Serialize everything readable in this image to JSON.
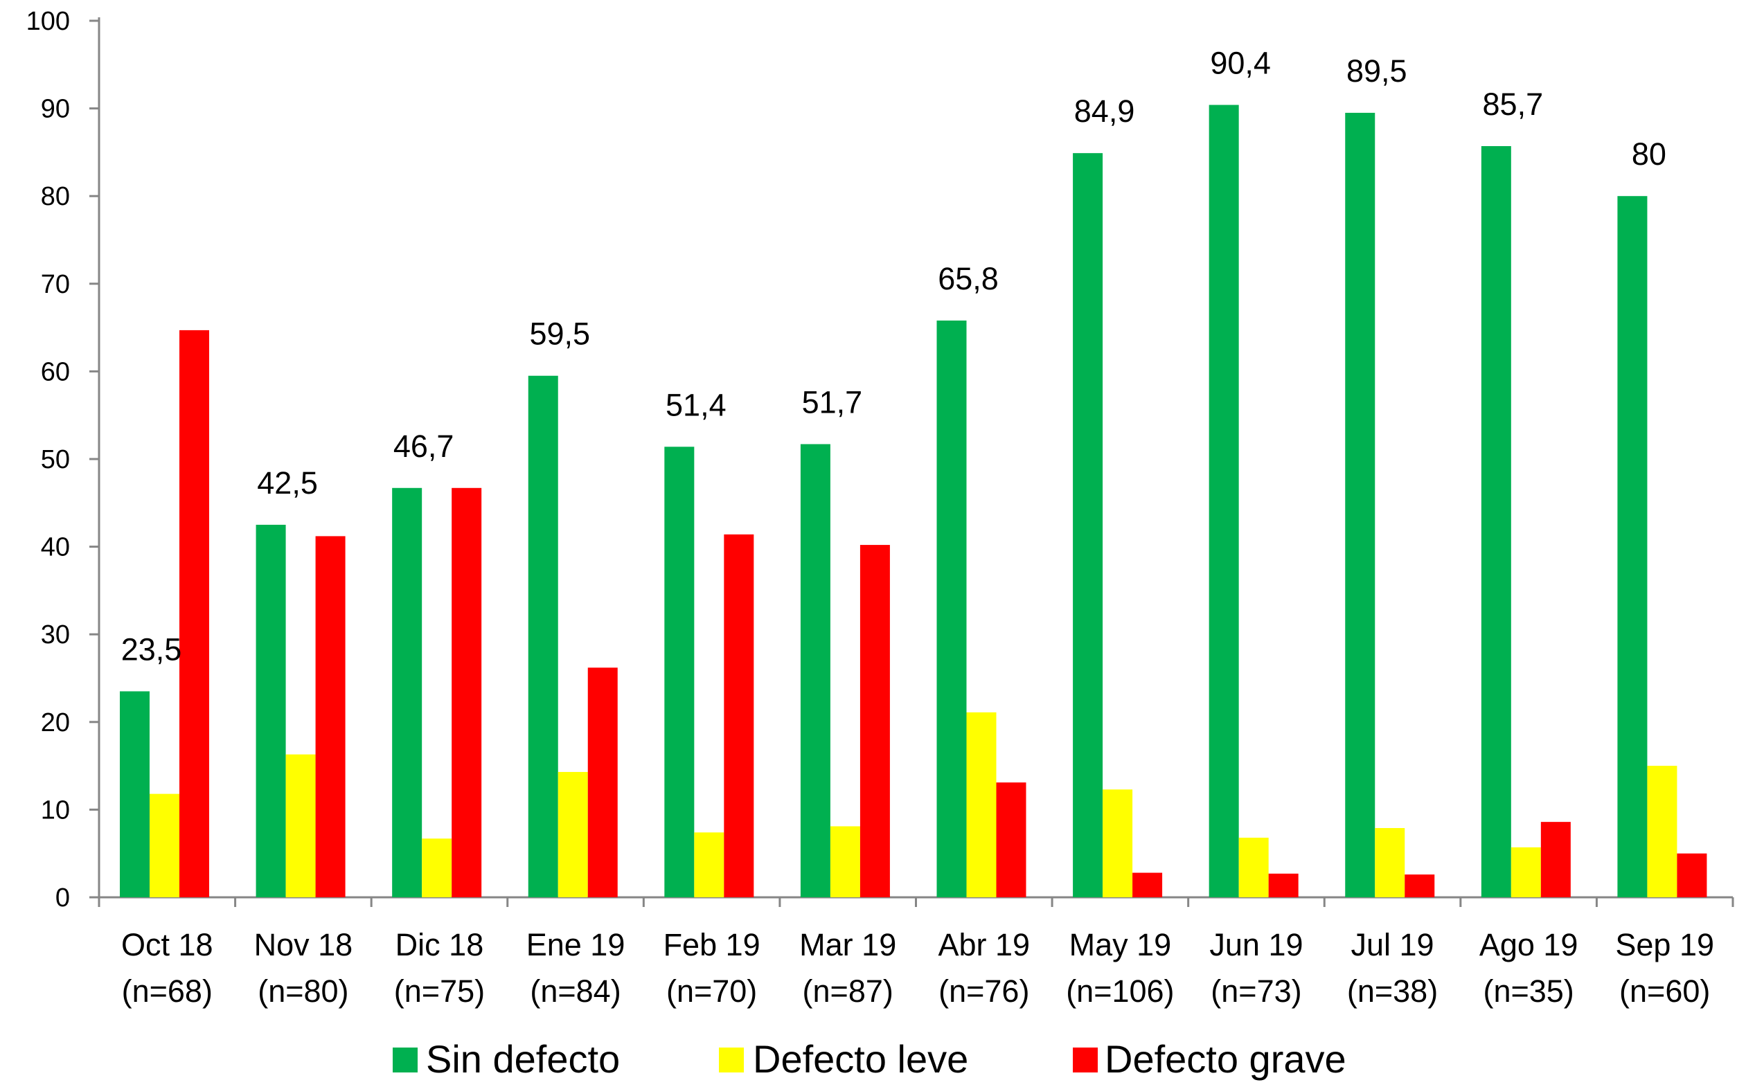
{
  "chart_data": {
    "type": "bar",
    "categories": [
      "Oct 18",
      "Nov 18",
      "Dic 18",
      "Ene 19",
      "Feb 19",
      "Mar 19",
      "Abr 19",
      "May 19",
      "Jun 19",
      "Jul 19",
      "Ago 19",
      "Sep 19"
    ],
    "category_n": [
      "(n=68)",
      "(n=80)",
      "(n=75)",
      "(n=84)",
      "(n=70)",
      "(n=87)",
      "(n=76)",
      "(n=106)",
      "(n=73)",
      "(n=38)",
      "(n=35)",
      "(n=60)"
    ],
    "series": [
      {
        "name": "Sin defecto",
        "color": "#00B050",
        "values": [
          23.5,
          42.5,
          46.7,
          59.5,
          51.4,
          51.7,
          65.8,
          84.9,
          90.4,
          89.5,
          85.7,
          80
        ]
      },
      {
        "name": "Defecto leve",
        "color": "#FFFF00",
        "values": [
          11.8,
          16.3,
          6.7,
          14.3,
          7.4,
          8.1,
          21.1,
          12.3,
          6.8,
          7.9,
          5.7,
          15
        ]
      },
      {
        "name": "Defecto grave",
        "color": "#FF0000",
        "values": [
          64.7,
          41.2,
          46.7,
          26.2,
          41.4,
          40.2,
          13.1,
          2.8,
          2.7,
          2.6,
          8.6,
          5
        ]
      }
    ],
    "data_labels": [
      "23,5",
      "42,5",
      "46,7",
      "59,5",
      "51,4",
      "51,7",
      "65,8",
      "84,9",
      "90,4",
      "89,5",
      "85,7",
      "80"
    ],
    "ylim": [
      0,
      100
    ],
    "yticks": [
      0,
      10,
      20,
      30,
      40,
      50,
      60,
      70,
      80,
      90,
      100
    ],
    "grid": false,
    "legend_position": "bottom"
  }
}
